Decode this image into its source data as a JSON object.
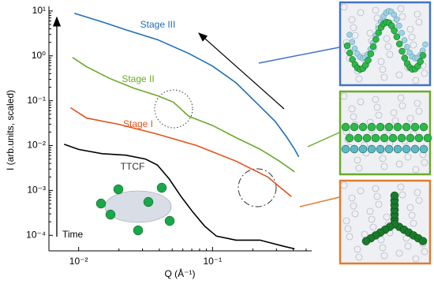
{
  "chart_data": {
    "type": "line",
    "ylabel": "I (arb.units, scaled)",
    "xlabel": "Q (Å⁻¹)",
    "arrow_label": "Time",
    "log_x": true,
    "log_y": true,
    "xlim": [
      0.006,
      0.55
    ],
    "ylim": [
      4.5e-05,
      12.7
    ],
    "xticks": [
      {
        "value": 0.01,
        "label": "10⁻²"
      },
      {
        "value": 0.1,
        "label": "10⁻¹"
      }
    ],
    "yticks": [
      {
        "value": 0.0001,
        "label": "10⁻⁴"
      },
      {
        "value": 0.001,
        "label": "10⁻³"
      },
      {
        "value": 0.01,
        "label": "10⁻²"
      },
      {
        "value": 0.1,
        "label": "10⁻¹"
      },
      {
        "value": 1,
        "label": "10⁰"
      },
      {
        "value": 10,
        "label": "10¹"
      }
    ],
    "series": [
      {
        "name": "Stage III",
        "color": "#1f6fb5",
        "x": [
          0.0093,
          0.015,
          0.0225,
          0.0387,
          0.0665,
          0.1,
          0.15,
          0.226,
          0.295,
          0.36,
          0.41,
          0.44
        ],
        "values": [
          8.85,
          5.7,
          3.8,
          2.3,
          1.13,
          0.59,
          0.25,
          0.075,
          0.034,
          0.015,
          0.0083,
          0.0056
        ]
      },
      {
        "name": "Stage II",
        "color": "#6aaa2a",
        "x": [
          0.009,
          0.0115,
          0.0172,
          0.0258,
          0.0387,
          0.0509,
          0.0665,
          0.1,
          0.15,
          0.226,
          0.316,
          0.41
        ],
        "values": [
          0.92,
          0.57,
          0.31,
          0.19,
          0.13,
          0.093,
          0.045,
          0.028,
          0.015,
          0.0083,
          0.0045,
          0.0026
        ]
      },
      {
        "name": "Stage I",
        "color": "#e0521a",
        "x": [
          0.0087,
          0.0115,
          0.0197,
          0.0387,
          0.0762,
          0.15,
          0.258,
          0.388
        ],
        "values": [
          0.07,
          0.041,
          0.03,
          0.018,
          0.01,
          0.0045,
          0.002,
          0.00073
        ]
      },
      {
        "name": "TTCF",
        "color": "#000000",
        "x": [
          0.0078,
          0.01,
          0.015,
          0.0225,
          0.0316,
          0.0387,
          0.0475,
          0.0582,
          0.0713,
          0.0874,
          0.107,
          0.15,
          0.226,
          0.34,
          0.41
        ],
        "values": [
          0.0107,
          0.0082,
          0.0066,
          0.0061,
          0.005,
          0.0037,
          0.0018,
          0.00073,
          0.00033,
          0.00016,
          9.6e-05,
          7.8e-05,
          7.8e-05,
          5.7e-05,
          5e-05
        ]
      }
    ]
  }
}
